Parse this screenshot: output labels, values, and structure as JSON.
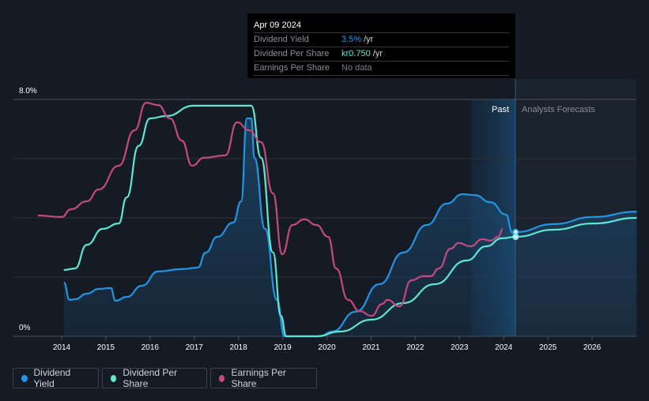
{
  "tooltip": {
    "date": "Apr 09 2024",
    "rows": [
      {
        "label": "Dividend Yield",
        "value": "3.5%",
        "unit": "/yr",
        "color": "#2394df"
      },
      {
        "label": "Dividend Per Share",
        "value": "kr0.750",
        "unit": "/yr",
        "color": "#5ee6d2"
      },
      {
        "label": "Earnings Per Share",
        "value": "No data",
        "unit": "",
        "color": "#7b808a"
      }
    ]
  },
  "regions": {
    "past": "Past",
    "forecast": "Analysts Forecasts"
  },
  "legend": [
    {
      "label": "Dividend Yield",
      "color": "#2394df"
    },
    {
      "label": "Dividend Per Share",
      "color": "#5ee6d2"
    },
    {
      "label": "Earnings Per Share",
      "color": "#c4497f"
    }
  ],
  "chart_data": {
    "type": "line",
    "ylim": [
      0,
      8
    ],
    "xlim": [
      2013.3,
      2027.0
    ],
    "y_tick_labels": [
      "8.0%",
      "0%"
    ],
    "x_tick_labels": [
      "2014",
      "2015",
      "2016",
      "2017",
      "2018",
      "2019",
      "2020",
      "2021",
      "2022",
      "2023",
      "2024",
      "2025",
      "2026"
    ],
    "past_range": [
      2023.27,
      2024.27
    ],
    "series": [
      {
        "name": "Dividend Yield",
        "color": "#2394df",
        "area": true,
        "points": [
          [
            2014.05,
            1.81
          ],
          [
            2014.18,
            1.23
          ],
          [
            2014.3,
            1.25
          ],
          [
            2014.57,
            1.44
          ],
          [
            2014.84,
            1.6
          ],
          [
            2015.11,
            1.63
          ],
          [
            2015.22,
            1.2
          ],
          [
            2015.47,
            1.33
          ],
          [
            2015.82,
            1.71
          ],
          [
            2016.18,
            2.19
          ],
          [
            2016.72,
            2.27
          ],
          [
            2017.08,
            2.32
          ],
          [
            2017.26,
            2.83
          ],
          [
            2017.52,
            3.36
          ],
          [
            2017.88,
            3.84
          ],
          [
            2018.06,
            4.56
          ],
          [
            2018.19,
            7.36
          ],
          [
            2018.29,
            7.36
          ],
          [
            2018.36,
            6.03
          ],
          [
            2018.6,
            3.63
          ],
          [
            2018.87,
            1.23
          ],
          [
            2019.04,
            0
          ],
          [
            2019.85,
            0
          ],
          [
            2020.12,
            0.16
          ],
          [
            2020.65,
            0.83
          ],
          [
            2021.19,
            1.76
          ],
          [
            2021.73,
            2.83
          ],
          [
            2022.26,
            3.76
          ],
          [
            2022.71,
            4.48
          ],
          [
            2023.07,
            4.8
          ],
          [
            2023.34,
            4.77
          ],
          [
            2023.7,
            4.53
          ],
          [
            2024.05,
            4.11
          ],
          [
            2024.2,
            3.49
          ],
          [
            2024.27,
            3.52
          ],
          [
            2025.13,
            3.79
          ],
          [
            2026.02,
            4.03
          ],
          [
            2027.01,
            4.21
          ]
        ]
      },
      {
        "name": "Dividend Per Share",
        "color": "#5ee6d2",
        "points": [
          [
            2014.05,
            2.24
          ],
          [
            2014.3,
            2.29
          ],
          [
            2014.57,
            3.09
          ],
          [
            2014.93,
            3.63
          ],
          [
            2015.29,
            3.81
          ],
          [
            2015.47,
            4.69
          ],
          [
            2015.74,
            6.43
          ],
          [
            2016.0,
            7.36
          ],
          [
            2016.36,
            7.44
          ],
          [
            2016.99,
            7.79
          ],
          [
            2018.29,
            7.79
          ],
          [
            2018.51,
            6.03
          ],
          [
            2018.78,
            2.83
          ],
          [
            2018.96,
            0.69
          ],
          [
            2019.08,
            0
          ],
          [
            2019.76,
            0
          ],
          [
            2020.3,
            0.16
          ],
          [
            2021.01,
            0.56
          ],
          [
            2021.73,
            1.12
          ],
          [
            2022.44,
            1.76
          ],
          [
            2023.16,
            2.56
          ],
          [
            2023.61,
            3.04
          ],
          [
            2023.96,
            3.31
          ],
          [
            2024.27,
            3.36
          ],
          [
            2025.13,
            3.6
          ],
          [
            2026.02,
            3.81
          ],
          [
            2027.01,
            4.0
          ]
        ]
      },
      {
        "name": "Earnings Per Share",
        "color": "#c4497f",
        "points": [
          [
            2013.46,
            4.08
          ],
          [
            2014.0,
            4.03
          ],
          [
            2014.21,
            4.29
          ],
          [
            2014.57,
            4.56
          ],
          [
            2014.84,
            4.96
          ],
          [
            2015.29,
            5.76
          ],
          [
            2015.65,
            6.96
          ],
          [
            2015.91,
            7.89
          ],
          [
            2016.18,
            7.81
          ],
          [
            2016.45,
            7.36
          ],
          [
            2016.72,
            6.61
          ],
          [
            2016.95,
            5.76
          ],
          [
            2017.22,
            6.03
          ],
          [
            2017.7,
            6.11
          ],
          [
            2017.97,
            7.23
          ],
          [
            2018.24,
            6.96
          ],
          [
            2018.51,
            6.56
          ],
          [
            2018.78,
            4.83
          ],
          [
            2018.99,
            2.77
          ],
          [
            2019.22,
            3.76
          ],
          [
            2019.49,
            3.95
          ],
          [
            2019.76,
            3.76
          ],
          [
            2020.03,
            3.36
          ],
          [
            2020.21,
            2.29
          ],
          [
            2020.48,
            1.23
          ],
          [
            2020.74,
            0.85
          ],
          [
            2021.01,
            0.69
          ],
          [
            2021.25,
            1.09
          ],
          [
            2021.37,
            1.23
          ],
          [
            2021.64,
            1.01
          ],
          [
            2021.91,
            1.89
          ],
          [
            2022.18,
            2.03
          ],
          [
            2022.35,
            2.03
          ],
          [
            2022.53,
            2.29
          ],
          [
            2022.8,
            2.96
          ],
          [
            2022.98,
            3.15
          ],
          [
            2023.25,
            3.04
          ],
          [
            2023.52,
            3.28
          ],
          [
            2023.7,
            3.23
          ],
          [
            2023.88,
            3.36
          ],
          [
            2023.98,
            3.63
          ]
        ]
      }
    ]
  }
}
